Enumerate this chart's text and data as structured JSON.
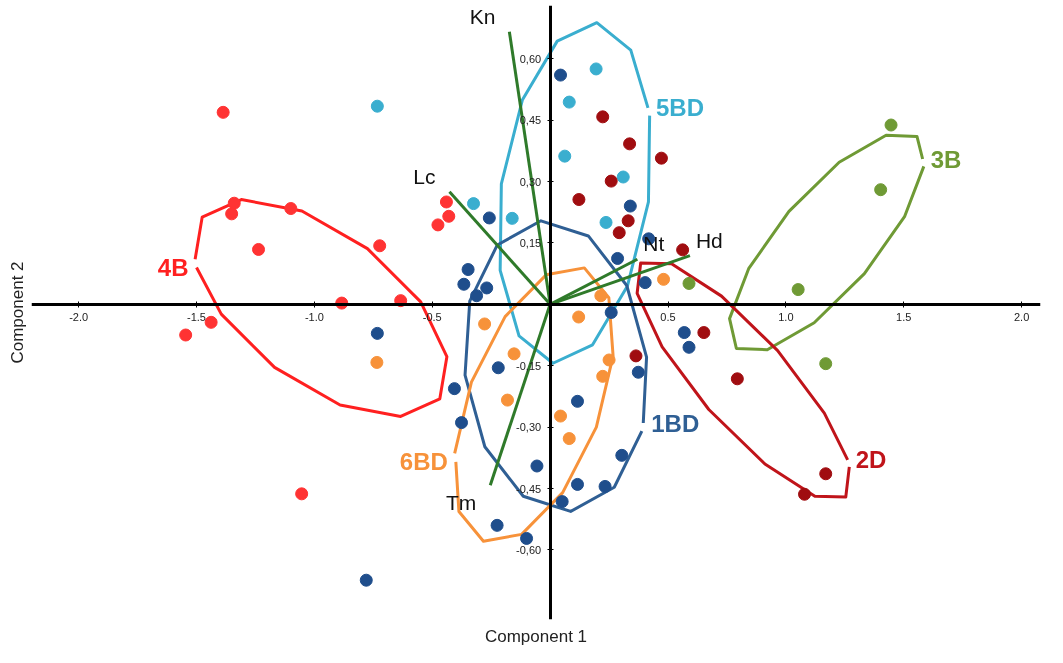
{
  "chart_data": {
    "type": "scatter",
    "xlabel": "Component 1",
    "ylabel": "Component 2",
    "xlim": [
      -2.2,
      2.08
    ],
    "ylim": [
      -0.77,
      0.73
    ],
    "xticks": [
      {
        "value": -2.0,
        "label": "-2.0"
      },
      {
        "value": -1.5,
        "label": "-1.5"
      },
      {
        "value": -1.0,
        "label": "-1.0"
      },
      {
        "value": -0.5,
        "label": "-0.5"
      },
      {
        "value": 0.5,
        "label": "0.5"
      },
      {
        "value": 1.0,
        "label": "1.0"
      },
      {
        "value": 1.5,
        "label": "1.5"
      },
      {
        "value": 2.0,
        "label": "2.0"
      }
    ],
    "yticks": [
      {
        "value": 0.6,
        "label": "0,60"
      },
      {
        "value": 0.45,
        "label": "0,45"
      },
      {
        "value": 0.3,
        "label": "0,30"
      },
      {
        "value": 0.15,
        "label": "0,15"
      },
      {
        "value": -0.15,
        "label": "-0,15"
      },
      {
        "value": -0.3,
        "label": "-0,30"
      },
      {
        "value": -0.45,
        "label": "-0,45"
      },
      {
        "value": -0.6,
        "label": "-0,60"
      }
    ],
    "grid": false,
    "marker": "circle",
    "line_style": "solid",
    "series": [
      {
        "color": "#ff3333",
        "x": [
          -1.387,
          -1.34,
          -1.351,
          -1.1,
          -1.237,
          -0.723,
          -0.884,
          -0.634,
          -1.438,
          -1.546,
          -0.44,
          -0.43,
          -0.476,
          -1.054
        ],
        "values": [
          0.469,
          0.247,
          0.221,
          0.234,
          0.134,
          0.143,
          0.003,
          0.009,
          -0.044,
          -0.075,
          0.25,
          0.215,
          0.194,
          -0.463
        ]
      },
      {
        "color": "#3aaecf",
        "x": [
          -0.733,
          -0.325,
          -0.161,
          0.195,
          0.081,
          0.062,
          0.31,
          0.237
        ],
        "values": [
          0.484,
          0.246,
          0.21,
          0.575,
          0.494,
          0.362,
          0.311,
          0.2
        ]
      },
      {
        "color": "#6f9a35",
        "x": [
          1.446,
          1.402,
          1.052,
          0.589,
          1.169
        ],
        "values": [
          0.438,
          0.28,
          0.036,
          0.051,
          -0.145
        ]
      },
      {
        "color": "#a00d10",
        "x": [
          0.223,
          0.337,
          0.472,
          0.259,
          0.122,
          0.331,
          0.293,
          0.562,
          0.652,
          0.364,
          0.794,
          1.169,
          1.079
        ],
        "values": [
          0.458,
          0.392,
          0.357,
          0.301,
          0.256,
          0.204,
          0.175,
          0.133,
          -0.069,
          -0.126,
          -0.182,
          -0.414,
          -0.464
        ]
      },
      {
        "color": "#1f4e8c",
        "x": [
          -0.733,
          -0.406,
          -0.78,
          0.044,
          0.34,
          -0.258,
          0.418,
          0.286,
          -0.348,
          -0.366,
          -0.269,
          -0.312,
          0.403,
          0.259,
          -0.22,
          -0.376,
          0.116,
          0.374,
          0.569,
          0.589,
          0.304,
          -0.056,
          0.116,
          0.233,
          0.051,
          -0.225,
          -0.1
        ],
        "values": [
          -0.071,
          -0.206,
          -0.674,
          0.56,
          0.24,
          0.211,
          0.16,
          0.112,
          0.085,
          0.049,
          0.04,
          0.021,
          0.053,
          -0.02,
          -0.155,
          -0.289,
          -0.237,
          -0.166,
          -0.069,
          -0.105,
          -0.369,
          -0.395,
          -0.44,
          -0.445,
          -0.482,
          -0.54,
          -0.572
        ]
      },
      {
        "color": "#f7923a",
        "x": [
          0.481,
          0.215,
          0.121,
          -0.278,
          -0.153,
          0.25,
          0.223,
          -0.181,
          0.044,
          0.081,
          -0.735
        ],
        "values": [
          0.061,
          0.021,
          -0.031,
          -0.048,
          -0.121,
          -0.136,
          -0.176,
          -0.234,
          -0.273,
          -0.328,
          -0.142
        ]
      },
      {
        "type": "line",
        "marker": "none",
        "name": "4B",
        "color": "#ff2020",
        "x": [
          -1.506,
          -1.476,
          -1.31,
          -1.053,
          -0.775,
          -0.549,
          -0.438,
          -0.468,
          -0.634,
          -0.891,
          -1.169,
          -1.395,
          -1.5
        ],
        "values": [
          0.11,
          0.213,
          0.256,
          0.228,
          0.136,
          0.006,
          -0.128,
          -0.231,
          -0.274,
          -0.246,
          -0.154,
          -0.024,
          0.09
        ]
      },
      {
        "type": "line",
        "marker": "none",
        "name": "5BD",
        "color": "#3aaecf",
        "x": [
          0.422,
          0.417,
          0.328,
          0.18,
          0.012,
          -0.132,
          -0.212,
          -0.207,
          -0.118,
          0.03,
          0.198,
          0.342,
          0.415
        ],
        "values": [
          0.461,
          0.25,
          0.045,
          -0.099,
          -0.144,
          -0.077,
          0.083,
          0.294,
          0.499,
          0.643,
          0.688,
          0.621,
          0.48
        ]
      },
      {
        "type": "line",
        "marker": "none",
        "name": "3B",
        "color": "#6f9a35",
        "x": [
          1.585,
          1.504,
          1.333,
          1.12,
          0.921,
          0.79,
          0.761,
          0.842,
          1.013,
          1.226,
          1.425,
          1.556,
          1.58
        ],
        "values": [
          0.337,
          0.215,
          0.075,
          -0.045,
          -0.111,
          -0.108,
          -0.035,
          0.087,
          0.227,
          0.347,
          0.413,
          0.41,
          0.355
        ]
      },
      {
        "type": "line",
        "marker": "none",
        "name": "2D",
        "color": "#c0141a",
        "x": [
          1.269,
          1.254,
          1.123,
          0.911,
          0.673,
          0.475,
          0.369,
          0.384,
          0.515,
          0.727,
          0.965,
          1.163,
          1.262
        ],
        "values": [
          -0.397,
          -0.471,
          -0.469,
          -0.39,
          -0.257,
          -0.104,
          0.027,
          0.101,
          0.099,
          0.02,
          -0.113,
          -0.266,
          -0.38
        ]
      },
      {
        "type": "line",
        "marker": "none",
        "name": "1BD",
        "color": "#2f5f94",
        "x": [
          0.389,
          0.272,
          0.087,
          -0.114,
          -0.277,
          -0.361,
          -0.341,
          -0.224,
          -0.039,
          0.162,
          0.325,
          0.409,
          0.395
        ],
        "values": [
          -0.31,
          -0.447,
          -0.506,
          -0.469,
          -0.348,
          -0.173,
          0.008,
          0.145,
          0.204,
          0.167,
          0.046,
          -0.129,
          -0.29
        ]
      },
      {
        "type": "line",
        "marker": "none",
        "name": "6BD",
        "color": "#f7923a",
        "x": [
          -0.405,
          -0.334,
          -0.191,
          -0.017,
          0.145,
          0.249,
          0.267,
          0.196,
          0.053,
          -0.121,
          -0.283,
          -0.387,
          -0.4
        ],
        "values": [
          -0.364,
          -0.19,
          -0.03,
          0.072,
          0.089,
          0.016,
          -0.126,
          -0.3,
          -0.46,
          -0.562,
          -0.579,
          -0.506,
          -0.385
        ]
      },
      {
        "type": "line",
        "marker": "none",
        "name": "Kn",
        "color": "#2f7a2a",
        "x": [
          0,
          -0.173
        ],
        "values": [
          0,
          0.666
        ]
      },
      {
        "type": "line",
        "marker": "none",
        "name": "Lc",
        "color": "#2f7a2a",
        "x": [
          0,
          -0.427
        ],
        "values": [
          0,
          0.275
        ]
      },
      {
        "type": "line",
        "marker": "none",
        "name": "Nt",
        "color": "#2f7a2a",
        "x": [
          0,
          0.37
        ],
        "values": [
          0,
          0.11
        ]
      },
      {
        "type": "line",
        "marker": "none",
        "name": "Hd",
        "color": "#2f7a2a",
        "x": [
          0,
          0.593
        ],
        "values": [
          0,
          0.119
        ]
      },
      {
        "type": "line",
        "marker": "none",
        "name": "Tm",
        "color": "#2f7a2a",
        "x": [
          0,
          -0.254
        ],
        "values": [
          0,
          -0.442
        ]
      }
    ]
  }
}
